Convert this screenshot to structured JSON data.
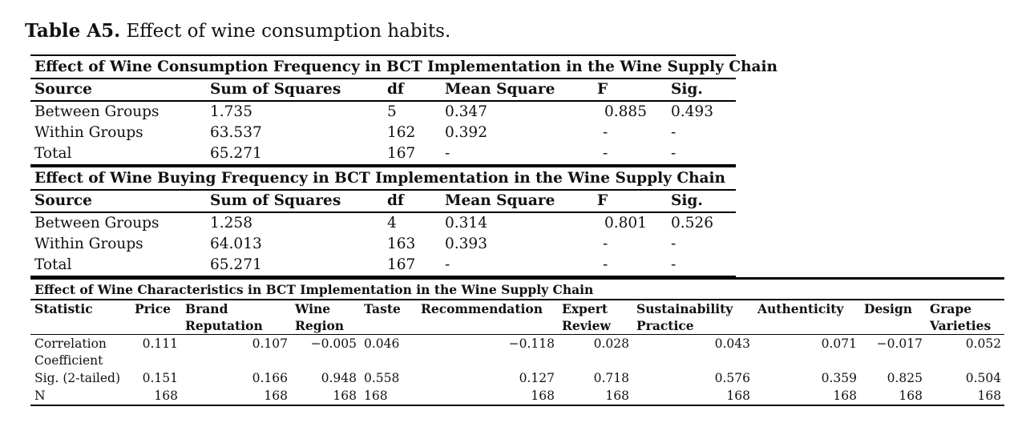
{
  "caption": {
    "label": "Table A5.",
    "text": " Effect of wine consumption habits."
  },
  "anova_tables": [
    {
      "title": "Effect of Wine Consumption Frequency in BCT Implementation in the Wine Supply Chain",
      "headers": [
        "Source",
        "Sum of Squares",
        "df",
        "Mean Square",
        "F",
        "Sig."
      ],
      "rows": [
        [
          "Between Groups",
          "1.735",
          "5",
          "0.347",
          "0.885",
          "0.493"
        ],
        [
          "Within Groups",
          "63.537",
          "162",
          "0.392",
          "-",
          "-"
        ],
        [
          "Total",
          "65.271",
          "167",
          "-",
          "-",
          "-"
        ]
      ]
    },
    {
      "title": "Effect of Wine Buying Frequency in BCT Implementation in the Wine Supply Chain",
      "headers": [
        "Source",
        "Sum of Squares",
        "df",
        "Mean Square",
        "F",
        "Sig."
      ],
      "rows": [
        [
          "Between Groups",
          "1.258",
          "4",
          "0.314",
          "0.801",
          "0.526"
        ],
        [
          "Within Groups",
          "64.013",
          "163",
          "0.393",
          "-",
          "-"
        ],
        [
          "Total",
          "65.271",
          "167",
          "-",
          "-",
          "-"
        ]
      ]
    }
  ],
  "correlation_table": {
    "title": "Effect of Wine Characteristics in BCT Implementation in the Wine Supply Chain",
    "headers": [
      "Statistic",
      "Price",
      "Brand Reputation",
      "Wine Region",
      "Taste",
      "Recommendation",
      "Expert Review",
      "Sustainability Practice",
      "Authenticity",
      "Design",
      "Grape Varieties"
    ],
    "rows": [
      [
        "Correlation Coefficient",
        "0.111",
        "0.107",
        "−0.005",
        "0.046",
        "−0.118",
        "0.028",
        "0.043",
        "0.071",
        "−0.017",
        "0.052"
      ],
      [
        "Sig. (2-tailed)",
        "0.151",
        "0.166",
        "0.948",
        "0.558",
        "0.127",
        "0.718",
        "0.576",
        "0.359",
        "0.825",
        "0.504"
      ],
      [
        "N",
        "168",
        "168",
        "168",
        "168",
        "168",
        "168",
        "168",
        "168",
        "168",
        "168"
      ]
    ]
  }
}
